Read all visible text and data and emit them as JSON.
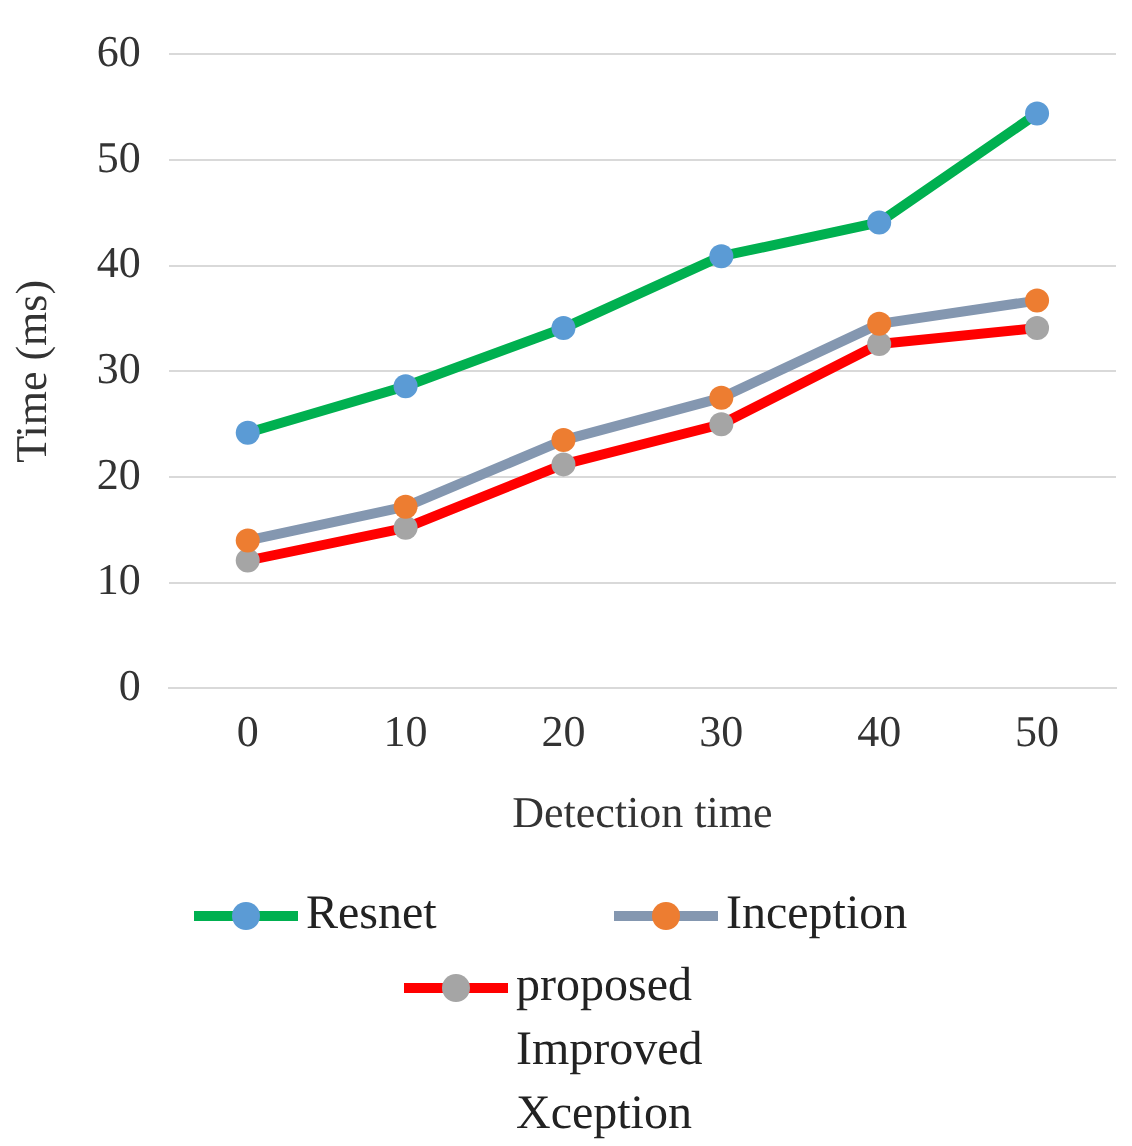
{
  "chart_data": {
    "type": "line",
    "xlabel": "Detection time",
    "ylabel": "Time (ms)",
    "categories": [
      "0",
      "10",
      "20",
      "30",
      "40",
      "50"
    ],
    "ylim": [
      0,
      60
    ],
    "yticks": [
      0,
      10,
      20,
      30,
      40,
      50,
      60
    ],
    "grid": "y",
    "legend": "bottom",
    "marker": "circle",
    "series": [
      {
        "name": "Resnet",
        "color": "#00b050",
        "values": [
          24.2,
          28.6,
          34.1,
          40.9,
          44.1,
          54.4
        ]
      },
      {
        "name": "Inception",
        "color": "#8497b0",
        "values": [
          14.0,
          17.2,
          23.5,
          27.5,
          34.5,
          36.7
        ]
      },
      {
        "name": "proposed Improved Xception",
        "color": "#ff0000",
        "values": [
          12.1,
          15.2,
          21.2,
          25.0,
          32.6,
          34.1
        ]
      }
    ]
  }
}
